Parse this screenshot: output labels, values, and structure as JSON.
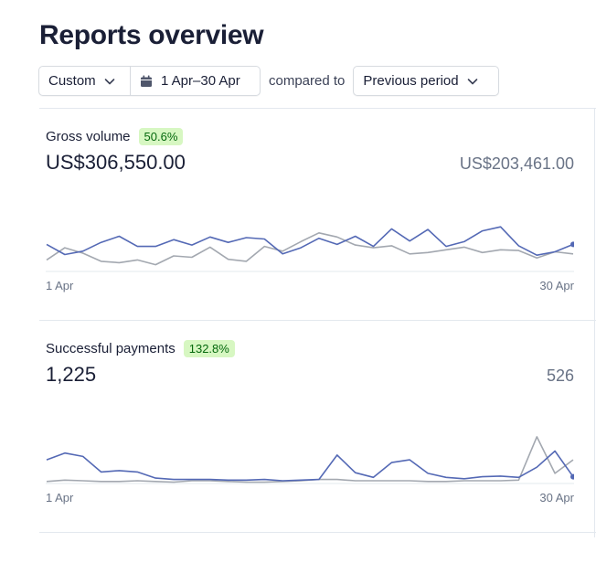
{
  "page": {
    "title": "Reports overview"
  },
  "filters": {
    "range_type": "Custom",
    "date_range": "1 Apr–30 Apr",
    "compared_label": "compared to",
    "comparison": "Previous period"
  },
  "colors": {
    "current": "#5469b5",
    "previous": "#a3a8b0",
    "badge_bg": "#d7f7c2",
    "badge_text": "#05690d"
  },
  "metrics": [
    {
      "label": "Gross volume",
      "change": "50.6%",
      "current_value": "US$306,550.00",
      "previous_value": "US$203,461.00",
      "x_start": "1 Apr",
      "x_end": "30 Apr"
    },
    {
      "label": "Successful payments",
      "change": "132.8%",
      "current_value": "1,225",
      "previous_value": "526",
      "x_start": "1 Apr",
      "x_end": "30 Apr"
    }
  ],
  "chart_data": [
    {
      "type": "line",
      "title": "Gross volume",
      "x": [
        1,
        2,
        3,
        4,
        5,
        6,
        7,
        8,
        9,
        10,
        11,
        12,
        13,
        14,
        15,
        16,
        17,
        18,
        19,
        20,
        21,
        22,
        23,
        24,
        25,
        26,
        27,
        28,
        29,
        30
      ],
      "series": [
        {
          "values": [
            40,
            25,
            30,
            43,
            52,
            37,
            37,
            47,
            39,
            51,
            43,
            50,
            48,
            26,
            35,
            49,
            40,
            52,
            37,
            63,
            45,
            62,
            37,
            44,
            60,
            66,
            38,
            24,
            29,
            40
          ]
        },
        {
          "values": [
            17,
            35,
            27,
            15,
            13,
            17,
            10,
            23,
            21,
            36,
            18,
            15,
            37,
            30,
            44,
            57,
            51,
            39,
            35,
            38,
            26,
            28,
            32,
            36,
            28,
            32,
            31,
            20,
            29,
            26
          ]
        }
      ],
      "ylim": [
        0,
        100
      ]
    },
    {
      "type": "line",
      "title": "Successful payments",
      "x": [
        1,
        2,
        3,
        4,
        5,
        6,
        7,
        8,
        9,
        10,
        11,
        12,
        13,
        14,
        15,
        16,
        17,
        18,
        19,
        20,
        21,
        22,
        23,
        24,
        25,
        26,
        27,
        28,
        29,
        30
      ],
      "series": [
        {
          "values": [
            35,
            45,
            40,
            17,
            19,
            17,
            8,
            6,
            6,
            6,
            5,
            5,
            6,
            4,
            5,
            6,
            42,
            16,
            9,
            31,
            35,
            15,
            9,
            7,
            10,
            11,
            9,
            24,
            48,
            10
          ]
        },
        {
          "values": [
            3,
            5,
            4,
            3,
            3,
            4,
            3,
            2,
            4,
            4,
            3,
            2,
            2,
            3,
            4,
            6,
            6,
            4,
            4,
            4,
            4,
            3,
            3,
            4,
            4,
            4,
            5,
            69,
            15,
            35
          ]
        }
      ],
      "ylim": [
        0,
        100
      ]
    }
  ]
}
